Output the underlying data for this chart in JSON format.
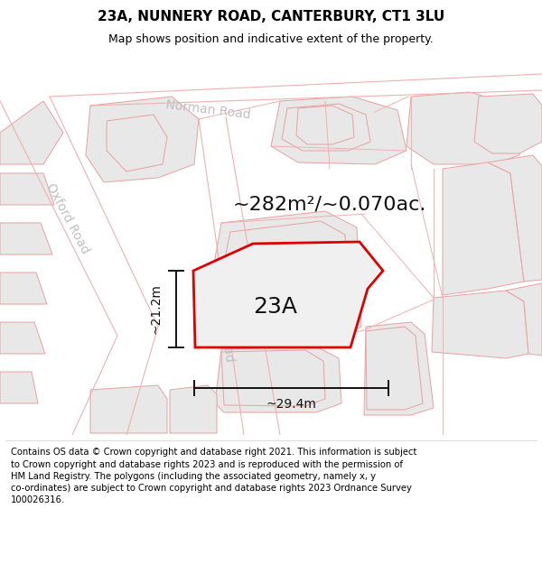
{
  "title": "23A, NUNNERY ROAD, CANTERBURY, CT1 3LU",
  "subtitle": "Map shows position and indicative extent of the property.",
  "footer_lines": [
    "Contains OS data © Crown copyright and database right 2021. This information is subject to Crown copyright and database rights 2023 and is reproduced with the permission of",
    "HM Land Registry. The polygons (including the associated geometry, namely x, y co-ordinates) are subject to Crown copyright and database rights 2023 Ordnance Survey",
    "100026316."
  ],
  "area_label": "~282m²/~0.070ac.",
  "property_label": "23A",
  "dim_width": "~29.4m",
  "dim_height": "~21.2m",
  "map_bg": "#ffffff",
  "building_fill": "#e8e8e8",
  "building_edge": "#e8a0a0",
  "road_line": "#f0b0b0",
  "property_stroke": "#dd0000",
  "property_fill": "#f0f0f0",
  "road_label_color": "#c0c0c0",
  "dim_color": "#111111",
  "area_color": "#111111",
  "property_label_color": "#111111",
  "title_fontsize": 11,
  "subtitle_fontsize": 9,
  "footer_fontsize": 7.2,
  "area_fontsize": 16,
  "property_label_fontsize": 18,
  "dim_fontsize": 10,
  "road_label_fontsize": 10
}
